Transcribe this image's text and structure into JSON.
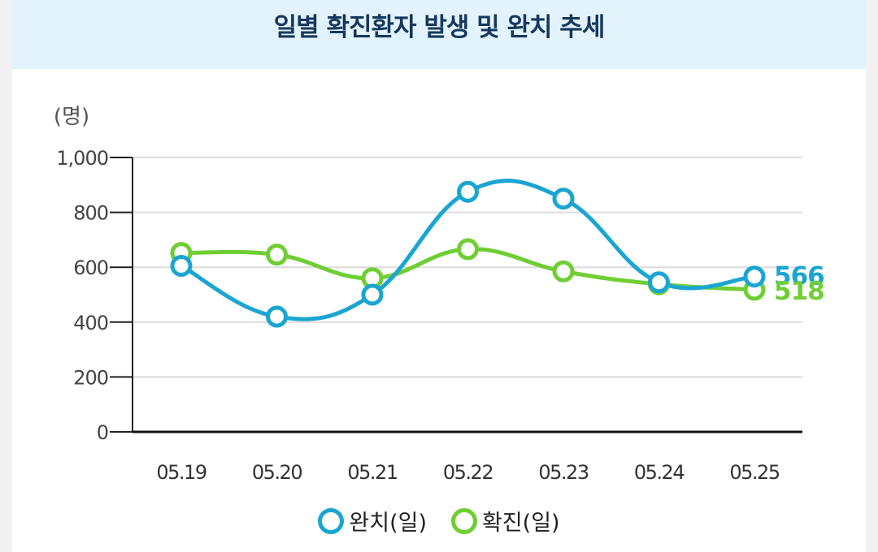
{
  "chart_data": {
    "type": "line",
    "title": "일별 확진환자 발생 및 완치 추세",
    "unit_label": "(명)",
    "categories": [
      "05.19",
      "05.20",
      "05.21",
      "05.22",
      "05.23",
      "05.24",
      "05.25"
    ],
    "ylim": [
      0,
      1000
    ],
    "yticks": [
      0,
      200,
      400,
      600,
      800,
      1000
    ],
    "ytick_labels": [
      "0",
      "200",
      "400",
      "600",
      "800",
      "1,000"
    ],
    "grid": true,
    "legend_position": "bottom",
    "series": [
      {
        "name": "완치(일)",
        "color": "#1aa5d2",
        "values": [
          605,
          420,
          500,
          875,
          850,
          545,
          566
        ],
        "end_label": "566"
      },
      {
        "name": "확진(일)",
        "color": "#6fce33",
        "values": [
          652,
          646,
          560,
          666,
          585,
          538,
          518
        ],
        "end_label": "518"
      }
    ]
  }
}
